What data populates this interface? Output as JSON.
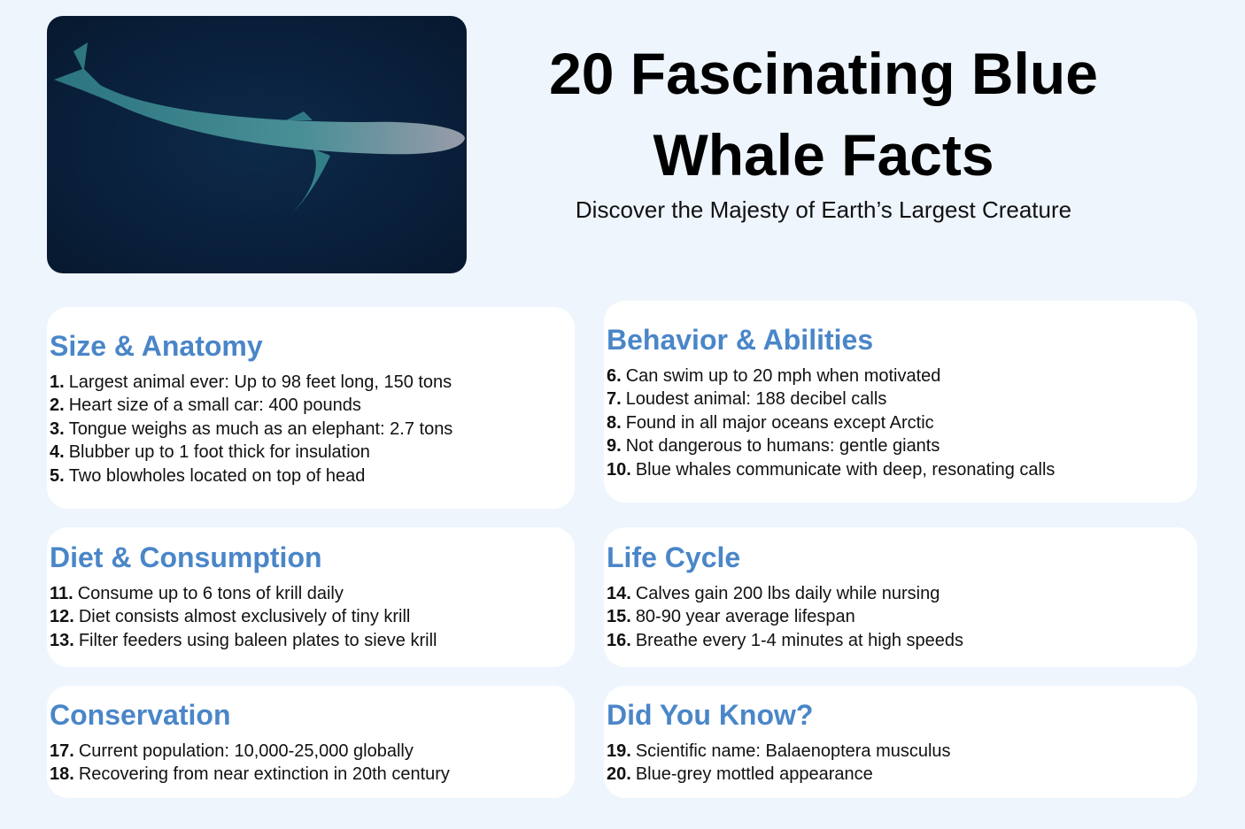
{
  "header": {
    "title_lines": [
      "20 Fascinating Blue",
      "Whale Facts"
    ],
    "subtitle": "Discover the Majesty of Earth’s Largest Creature"
  },
  "sections": [
    {
      "heading": "Size & Anatomy",
      "items": [
        {
          "number": "1.",
          "text": "Largest animal ever: Up to 98 feet long, 150 tons"
        },
        {
          "number": "2.",
          "text": "Heart size of a small car: 400 pounds"
        },
        {
          "number": "3.",
          "text": "Tongue weighs as much as an elephant: 2.7 tons"
        },
        {
          "number": "4.",
          "text": "Blubber up to 1 foot thick for insulation"
        },
        {
          "number": "5.",
          "text": "Two blowholes located on top of head"
        }
      ]
    },
    {
      "heading": "Behavior & Abilities",
      "items": [
        {
          "number": "6.",
          "text": "Can swim up to 20 mph when motivated"
        },
        {
          "number": "7.",
          "text": "Loudest animal: 188 decibel calls"
        },
        {
          "number": "8.",
          "text": "Found in all major oceans except Arctic"
        },
        {
          "number": "9.",
          "text": "Not dangerous to humans: gentle giants"
        },
        {
          "number": "10.",
          "text": "Blue whales communicate with deep, resonating calls"
        }
      ]
    },
    {
      "heading": "Diet & Consumption",
      "items": [
        {
          "number": "11.",
          "text": "Consume up to 6 tons of krill daily"
        },
        {
          "number": "12.",
          "text": "Diet consists almost exclusively of tiny krill"
        },
        {
          "number": "13.",
          "text": "Filter feeders using baleen plates to sieve krill"
        }
      ]
    },
    {
      "heading": "Life Cycle",
      "items": [
        {
          "number": "14.",
          "text": "Calves gain 200 lbs daily while nursing"
        },
        {
          "number": "15.",
          "text": "80-90 year average lifespan"
        },
        {
          "number": "16.",
          "text": "Breathe every 1-4 minutes at high speeds"
        }
      ]
    },
    {
      "heading": "Conservation",
      "items": [
        {
          "number": "17.",
          "text": "Current population: 10,000-25,000 globally"
        },
        {
          "number": "18.",
          "text": "Recovering from near extinction in 20th century"
        }
      ]
    },
    {
      "heading": "Did You Know?",
      "items": [
        {
          "number": "19.",
          "text": "Scientific name: Balaenoptera musculus"
        },
        {
          "number": "20.",
          "text": "Blue-grey mottled appearance"
        }
      ]
    }
  ]
}
